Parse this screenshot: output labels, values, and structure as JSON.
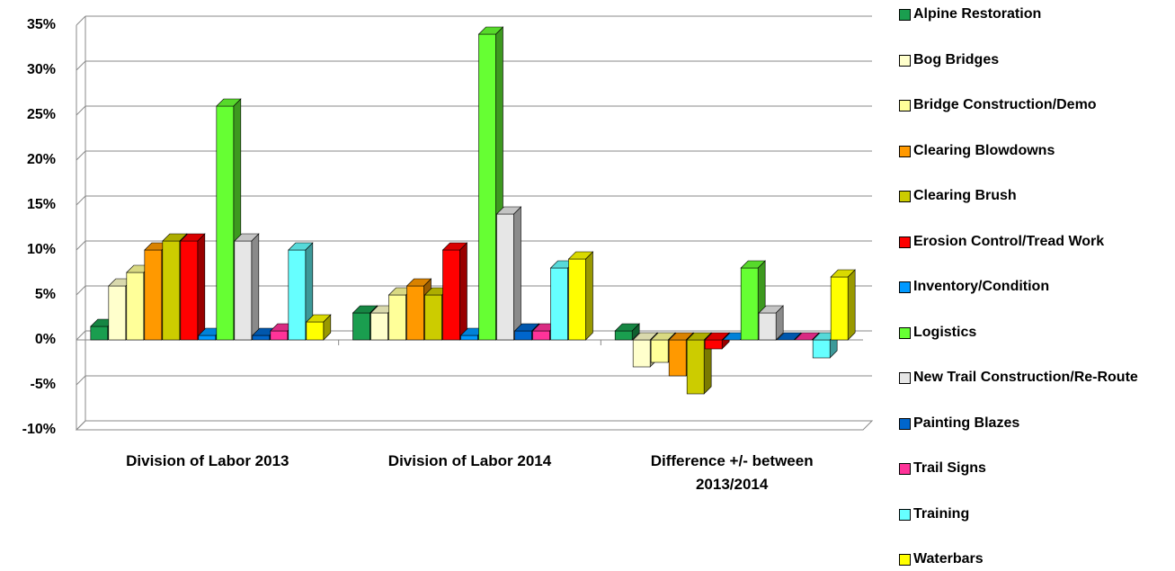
{
  "chart_data": {
    "type": "bar3d",
    "categories": [
      "Division of Labor 2013",
      "Division of Labor 2014",
      "Difference +/- between 2013/2014"
    ],
    "series": [
      {
        "name": "Alpine Restoration",
        "color": "#1a9e4f",
        "values": [
          1.5,
          3,
          1
        ]
      },
      {
        "name": "Bog Bridges",
        "color": "#ffffcc",
        "values": [
          6,
          3,
          -3
        ]
      },
      {
        "name": "Bridge Construction/Demo",
        "color": "#ffff99",
        "values": [
          7.5,
          5,
          -2.5
        ]
      },
      {
        "name": "Clearing Blowdowns",
        "color": "#ff9900",
        "values": [
          10,
          6,
          -4
        ]
      },
      {
        "name": "Clearing Brush",
        "color": "#cccc00",
        "values": [
          11,
          5,
          -6
        ]
      },
      {
        "name": "Erosion Control/Tread Work",
        "color": "#ff0000",
        "values": [
          11,
          10,
          -1
        ]
      },
      {
        "name": "Inventory/Condition",
        "color": "#0099ff",
        "values": [
          0.5,
          0.5,
          0
        ]
      },
      {
        "name": "Logistics",
        "color": "#66ff33",
        "values": [
          26,
          34,
          8
        ]
      },
      {
        "name": "New Trail Construction/Re-Route",
        "color": "#e6e6e6",
        "values": [
          11,
          14,
          3
        ]
      },
      {
        "name": "Painting Blazes",
        "color": "#0066cc",
        "values": [
          0.5,
          1,
          0
        ]
      },
      {
        "name": "Trail Signs",
        "color": "#ff3399",
        "values": [
          1,
          1,
          0
        ]
      },
      {
        "name": "Training",
        "color": "#66ffff",
        "values": [
          10,
          8,
          -2
        ]
      },
      {
        "name": "Waterbars",
        "color": "#ffff00",
        "values": [
          2,
          9,
          7
        ]
      }
    ],
    "ylim": [
      -10,
      35
    ],
    "yticks": [
      {
        "value": -10,
        "label": "-10%"
      },
      {
        "value": -5,
        "label": "-5%"
      },
      {
        "value": 0,
        "label": "0%"
      },
      {
        "value": 5,
        "label": "5%"
      },
      {
        "value": 10,
        "label": "10%"
      },
      {
        "value": 15,
        "label": "15%"
      },
      {
        "value": 20,
        "label": "20%"
      },
      {
        "value": 25,
        "label": "25%"
      },
      {
        "value": 30,
        "label": "30%"
      },
      {
        "value": 35,
        "label": "35%"
      }
    ],
    "grid": true
  }
}
